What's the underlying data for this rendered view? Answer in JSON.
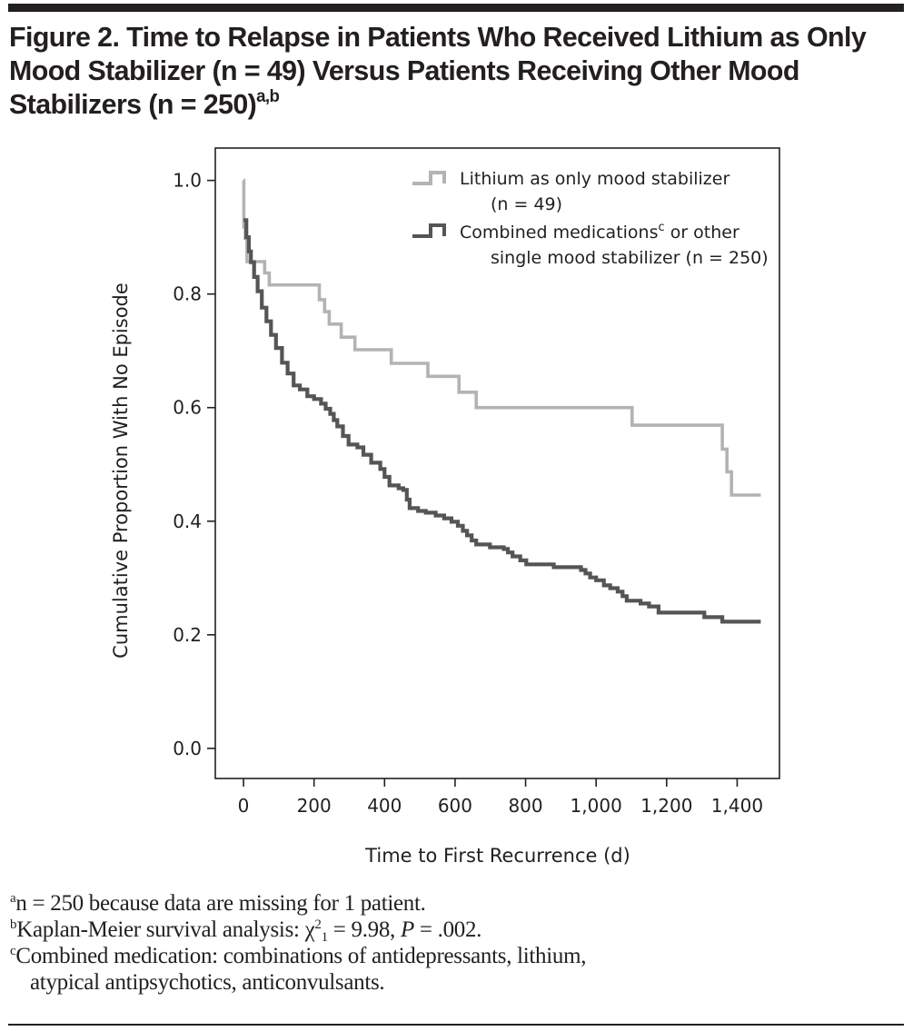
{
  "figure": {
    "title_main": "Figure 2. Time to Relapse in Patients Who Received Lithium as Only Mood Stabilizer (n = 49) Versus Patients Receiving Other Mood Stabilizers (n = 250)",
    "title_superscript": "a,b"
  },
  "footnotes": [
    {
      "marker": "a",
      "text": "n = 250 because data are missing for 1 patient."
    },
    {
      "marker": "b",
      "text_before": "Kaplan-Meier survival analysis: χ",
      "chi_sup": "2",
      "chi_sub": "1",
      "text_after": " = 9.98, ",
      "p_label": "P",
      "p_value": " = .002."
    },
    {
      "marker": "c",
      "text": "Combined medication: combinations of antidepressants, lithium,",
      "continuation": "atypical antipsychotics, anticonvulsants."
    }
  ],
  "chart_data": {
    "type": "line",
    "subtype": "kaplan-meier-step",
    "title": "Time to Relapse in Patients Who Received Lithium as Only Mood Stabilizer (n = 49) Versus Patients Receiving Other Mood Stabilizers (n = 250)",
    "xlabel": "Time to First Recurrence (d)",
    "ylabel": "Cumulative Proportion With No Episode",
    "xlim": [
      -80,
      1520
    ],
    "ylim": [
      -0.053,
      1.057
    ],
    "xticks": [
      0,
      200,
      400,
      600,
      800,
      1000,
      1200,
      1400
    ],
    "xtick_labels": [
      "0",
      "200",
      "400",
      "600",
      "800",
      "1,000",
      "1,200",
      "1,400"
    ],
    "yticks": [
      0.0,
      0.2,
      0.4,
      0.6,
      0.8,
      1.0
    ],
    "ytick_labels": [
      "0.0",
      "0.2",
      "0.4",
      "0.6",
      "0.8",
      "1.0"
    ],
    "grid": false,
    "legend_position": "top-right",
    "series": [
      {
        "name": "Lithium as only mood stabilizer",
        "name_line2": "(n = 49)",
        "color": "#b3b3b3",
        "points": [
          [
            0,
            1.0
          ],
          [
            1,
            0.918
          ],
          [
            5,
            0.898
          ],
          [
            10,
            0.857
          ],
          [
            60,
            0.837
          ],
          [
            73,
            0.816
          ],
          [
            215,
            0.79
          ],
          [
            230,
            0.769
          ],
          [
            243,
            0.747
          ],
          [
            277,
            0.724
          ],
          [
            316,
            0.702
          ],
          [
            419,
            0.678
          ],
          [
            523,
            0.655
          ],
          [
            611,
            0.627
          ],
          [
            660,
            0.6
          ],
          [
            1102,
            0.569
          ],
          [
            1358,
            0.527
          ],
          [
            1371,
            0.487
          ],
          [
            1384,
            0.446
          ],
          [
            1467,
            0.446
          ]
        ]
      },
      {
        "name": "Combined medications",
        "name_superscript": "c",
        "name_suffix": " or other",
        "name_line2": "single mood stabilizer (n = 250)",
        "color": "#555555",
        "points": [
          [
            0,
            0.93
          ],
          [
            8,
            0.9
          ],
          [
            15,
            0.875
          ],
          [
            21,
            0.856
          ],
          [
            30,
            0.83
          ],
          [
            40,
            0.805
          ],
          [
            52,
            0.776
          ],
          [
            65,
            0.752
          ],
          [
            78,
            0.728
          ],
          [
            92,
            0.705
          ],
          [
            109,
            0.679
          ],
          [
            125,
            0.66
          ],
          [
            142,
            0.639
          ],
          [
            160,
            0.632
          ],
          [
            181,
            0.62
          ],
          [
            200,
            0.615
          ],
          [
            220,
            0.607
          ],
          [
            233,
            0.598
          ],
          [
            246,
            0.589
          ],
          [
            256,
            0.578
          ],
          [
            266,
            0.567
          ],
          [
            282,
            0.55
          ],
          [
            298,
            0.535
          ],
          [
            323,
            0.53
          ],
          [
            340,
            0.517
          ],
          [
            362,
            0.503
          ],
          [
            388,
            0.492
          ],
          [
            400,
            0.478
          ],
          [
            414,
            0.463
          ],
          [
            440,
            0.458
          ],
          [
            453,
            0.455
          ],
          [
            463,
            0.438
          ],
          [
            471,
            0.423
          ],
          [
            495,
            0.418
          ],
          [
            517,
            0.415
          ],
          [
            545,
            0.41
          ],
          [
            569,
            0.405
          ],
          [
            590,
            0.399
          ],
          [
            608,
            0.392
          ],
          [
            622,
            0.383
          ],
          [
            634,
            0.375
          ],
          [
            647,
            0.366
          ],
          [
            660,
            0.359
          ],
          [
            699,
            0.354
          ],
          [
            738,
            0.351
          ],
          [
            750,
            0.345
          ],
          [
            763,
            0.338
          ],
          [
            785,
            0.331
          ],
          [
            802,
            0.324
          ],
          [
            880,
            0.319
          ],
          [
            957,
            0.314
          ],
          [
            970,
            0.308
          ],
          [
            983,
            0.301
          ],
          [
            1000,
            0.296
          ],
          [
            1022,
            0.287
          ],
          [
            1040,
            0.282
          ],
          [
            1061,
            0.276
          ],
          [
            1075,
            0.268
          ],
          [
            1087,
            0.26
          ],
          [
            1126,
            0.255
          ],
          [
            1150,
            0.25
          ],
          [
            1177,
            0.239
          ],
          [
            1281,
            0.239
          ],
          [
            1307,
            0.231
          ],
          [
            1358,
            0.223
          ],
          [
            1467,
            0.223
          ]
        ]
      }
    ]
  }
}
